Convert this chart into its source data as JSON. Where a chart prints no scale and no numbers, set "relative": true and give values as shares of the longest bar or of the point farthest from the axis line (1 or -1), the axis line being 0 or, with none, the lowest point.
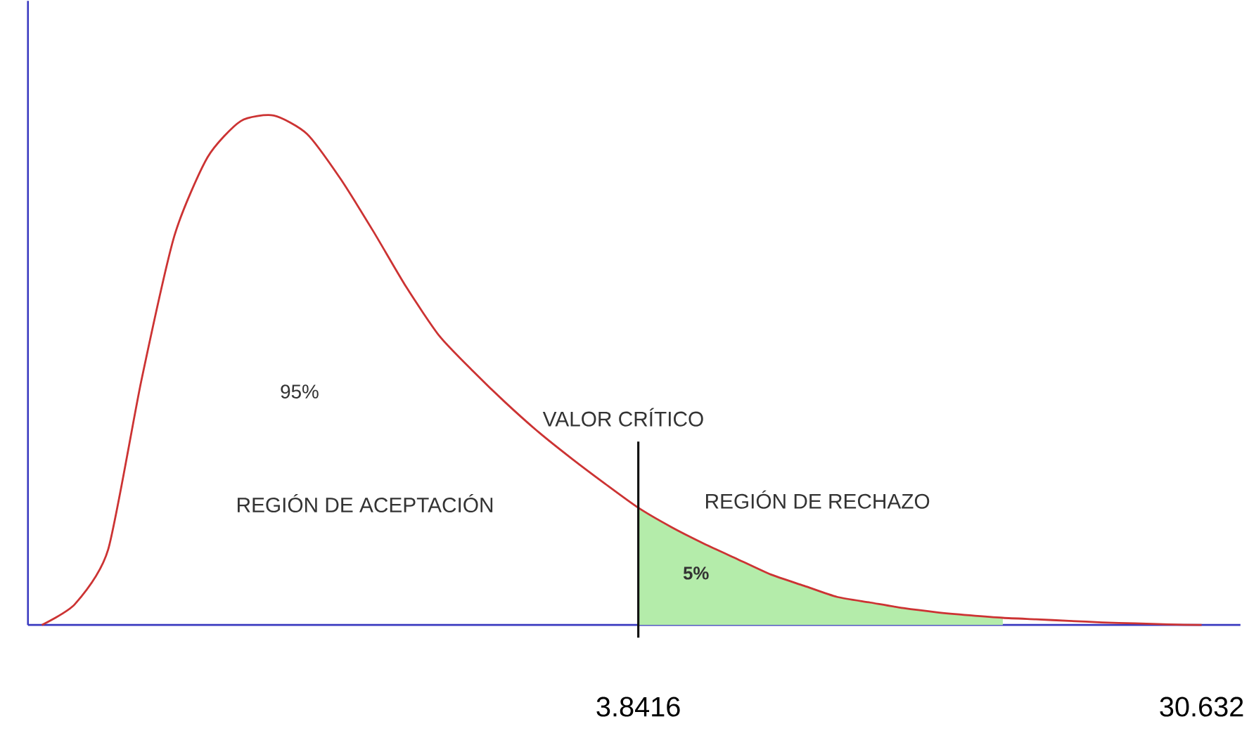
{
  "chart_data": {
    "type": "line",
    "relative": true,
    "marker": "none",
    "line_style": "solid",
    "categories": [
      null,
      null,
      null,
      null,
      null,
      null,
      null,
      null,
      null,
      null,
      null,
      null,
      null,
      null,
      null,
      null,
      null,
      null,
      "3.8416",
      null,
      null,
      null,
      null,
      null,
      null,
      null,
      null,
      null,
      null,
      null,
      null,
      null,
      null,
      null,
      null,
      "30.632"
    ],
    "series": [
      {
        "color": "#cc3333",
        "values": [
          0,
          0.041,
          0.148,
          0.479,
          0.764,
          0.918,
          0.989,
          1,
          0.964,
          0.877,
          0.773,
          0.663,
          0.567,
          0.499,
          0.436,
          0.378,
          0.326,
          0.277,
          0.23,
          0.192,
          0.159,
          0.129,
          0.099,
          0.077,
          0.055,
          0.044,
          0.033,
          0.025,
          0.019,
          0.014,
          0.011,
          0.008,
          0.005,
          0.003,
          0.001,
          0
        ]
      },
      {
        "type": "area",
        "color": "#b4ecaa",
        "values": [
          null,
          null,
          null,
          null,
          null,
          null,
          null,
          null,
          null,
          null,
          null,
          null,
          null,
          null,
          null,
          null,
          null,
          null,
          0.23,
          0.192,
          0.159,
          0.129,
          0.099,
          0.077,
          0.055,
          0.044,
          0.033,
          0.025,
          0.019,
          0.014,
          null,
          null,
          null,
          null,
          null,
          null
        ]
      }
    ],
    "ref_lines": [
      {
        "axis": "x",
        "value": "3.8416",
        "label": "VALOR CRÍTICO",
        "color": "#111111"
      }
    ],
    "annotations": [
      "95%",
      "REGIÓN  DE ACEPTACIÓN",
      "REGIÓN DE RECHAZO",
      "5%"
    ]
  }
}
